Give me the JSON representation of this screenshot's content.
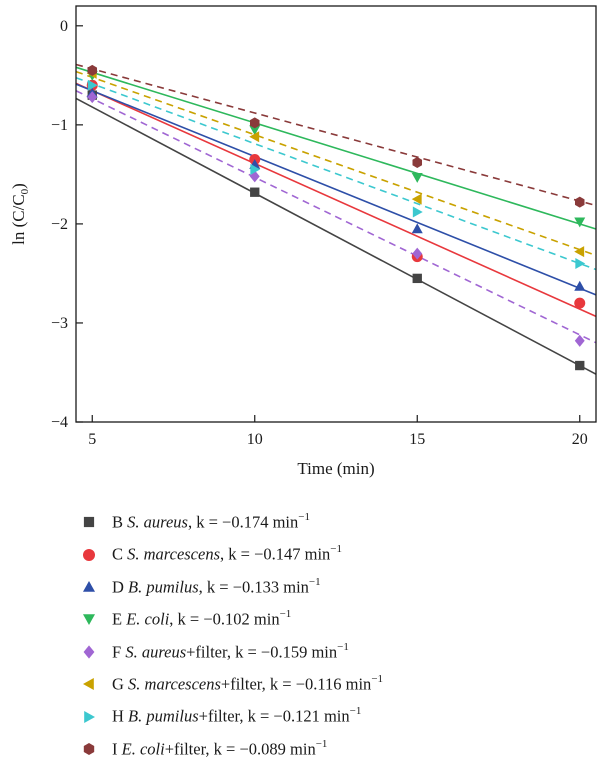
{
  "chart_data": {
    "type": "scatter",
    "xlabel": "Time (min)",
    "ylabel_main": "ln (C/C",
    "ylabel_sub": "0",
    "ylabel_end": ")",
    "xlim": [
      4.5,
      20.5
    ],
    "ylim": [
      -4,
      0.2
    ],
    "xticks": [
      5,
      10,
      15,
      20
    ],
    "yticks": [
      0,
      -1,
      -2,
      -3,
      -4
    ],
    "xtick_labels": [
      "5",
      "10",
      "15",
      "20"
    ],
    "ytick_labels": [
      "0",
      "−1",
      "−2",
      "−3",
      "−4"
    ],
    "x": [
      5,
      10,
      15,
      20
    ],
    "grid": false,
    "legend_position": "below",
    "series": [
      {
        "letter": "B",
        "organism": "S. aureus",
        "suffix": "",
        "k_text": ", k = −0.174 min",
        "exp": "−1",
        "marker": "square",
        "color": "#444444",
        "line": "solid",
        "k": -0.174,
        "intercept": 0.05,
        "values": [
          -0.7,
          -1.68,
          -2.55,
          -3.43
        ]
      },
      {
        "letter": "C",
        "organism": "S. marcescens",
        "suffix": "",
        "k_text": ", k = −0.147 min",
        "exp": "−1",
        "marker": "circle",
        "color": "#e8383d",
        "line": "solid",
        "k": -0.147,
        "intercept": 0.08,
        "values": [
          -0.6,
          -1.35,
          -2.33,
          -2.8
        ]
      },
      {
        "letter": "D",
        "organism": "B. pumilus",
        "suffix": "",
        "k_text": ", k = −0.133 min",
        "exp": "−1",
        "marker": "triangle-up",
        "color": "#2e4fa8",
        "line": "solid",
        "k": -0.133,
        "intercept": 0.01,
        "values": [
          -0.68,
          -1.4,
          -2.05,
          -2.63
        ]
      },
      {
        "letter": "E",
        "organism": "E. coli",
        "suffix": "",
        "k_text": ", k = −0.102 min",
        "exp": "−1",
        "marker": "triangle-down",
        "color": "#2eb85c",
        "line": "solid",
        "k": -0.102,
        "intercept": 0.04,
        "values": [
          -0.5,
          -1.05,
          -1.53,
          -1.98
        ]
      },
      {
        "letter": "F",
        "organism": "S. aureus",
        "suffix": "+filter",
        "k_text": ", k = −0.159 min",
        "exp": "−1",
        "marker": "diamond",
        "color": "#a066d3",
        "line": "dashed",
        "k": -0.159,
        "intercept": 0.06,
        "values": [
          -0.72,
          -1.52,
          -2.3,
          -3.18
        ]
      },
      {
        "letter": "G",
        "organism": "S. marcescens",
        "suffix": "+filter",
        "k_text": ", k = −0.116 min",
        "exp": "−1",
        "marker": "triangle-left",
        "color": "#c9a200",
        "line": "dashed",
        "k": -0.116,
        "intercept": 0.06,
        "values": [
          -0.48,
          -1.12,
          -1.75,
          -2.28
        ]
      },
      {
        "letter": "H",
        "organism": "B. pumilus",
        "suffix": "+filter",
        "k_text": ", k = −0.121 min",
        "exp": "−1",
        "marker": "triangle-right",
        "color": "#3cc8cf",
        "line": "dashed",
        "k": -0.121,
        "intercept": 0.02,
        "values": [
          -0.6,
          -1.45,
          -1.88,
          -2.4
        ]
      },
      {
        "letter": "I",
        "organism": "E. coli",
        "suffix": "+filter",
        "k_text": ", k = −0.089 min",
        "exp": "−1",
        "marker": "hexagon",
        "color": "#8a3a3a",
        "line": "dashed",
        "k": -0.089,
        "intercept": 0.01,
        "values": [
          -0.45,
          -0.98,
          -1.38,
          -1.78
        ]
      }
    ]
  }
}
